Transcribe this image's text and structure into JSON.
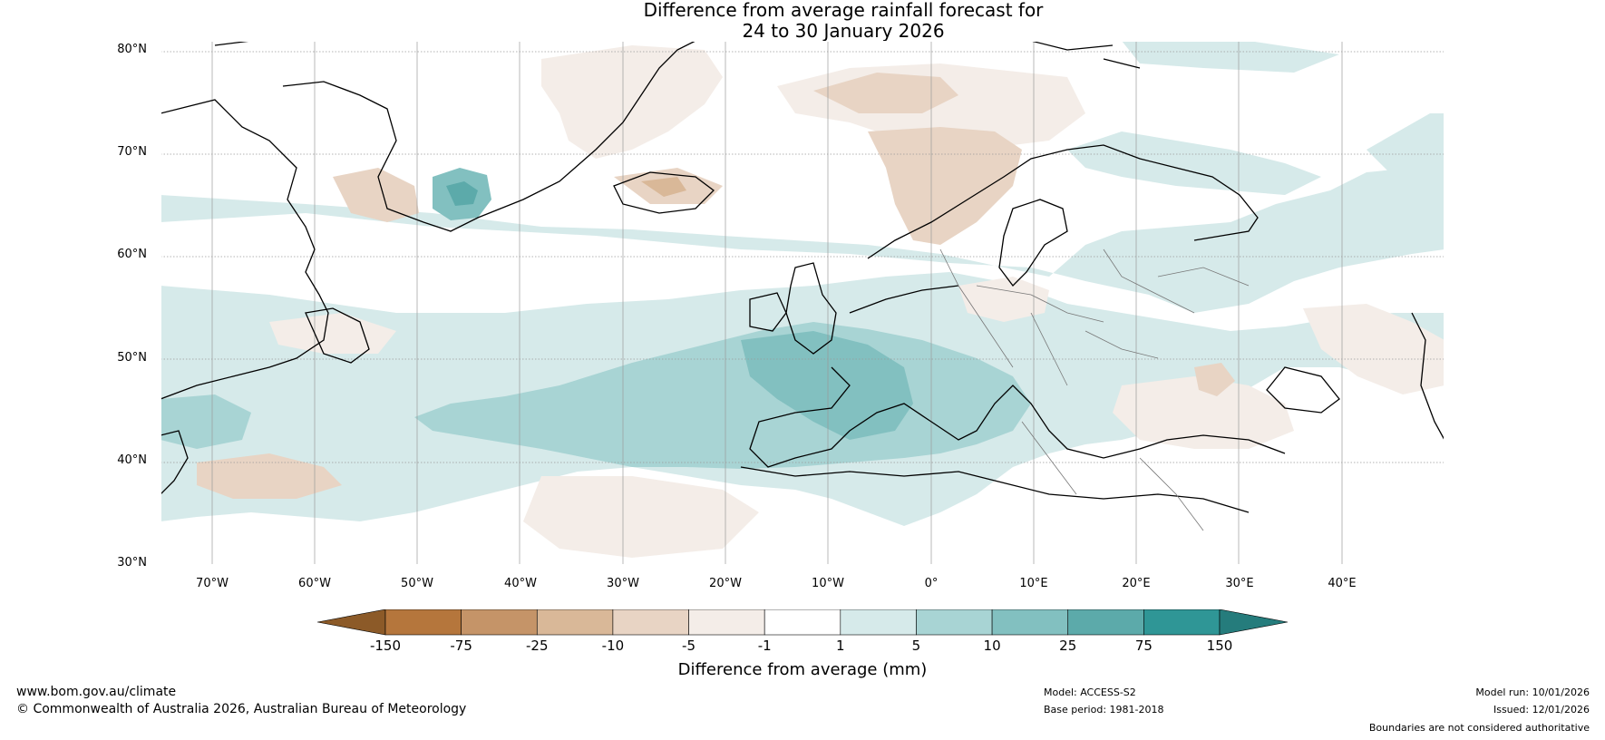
{
  "title": {
    "line1": "Difference from average rainfall forecast for",
    "line2": "24 to 30 January 2026"
  },
  "map": {
    "lat_labels": [
      "80°N",
      "70°N",
      "60°N",
      "50°N",
      "40°N",
      "30°N"
    ],
    "lon_labels": [
      "70°W",
      "60°W",
      "50°W",
      "40°W",
      "30°W",
      "20°W",
      "10°W",
      "0°",
      "10°E",
      "20°E",
      "30°E",
      "40°E"
    ],
    "extent": {
      "lon": [
        -75,
        50
      ],
      "lat": [
        30,
        81
      ]
    }
  },
  "colorbar": {
    "ticks": [
      "-150",
      "-75",
      "-25",
      "-10",
      "-5",
      "-1",
      "1",
      "5",
      "10",
      "25",
      "75",
      "150"
    ],
    "colors": [
      "#8c5a28",
      "#b5763c",
      "#c59468",
      "#d9b898",
      "#e8d4c4",
      "#f4ede8",
      "#ffffff",
      "#d6eaea",
      "#a8d4d4",
      "#82c0c0",
      "#5caaaa",
      "#2f9696",
      "#257c7c"
    ],
    "label": "Difference from average (mm)"
  },
  "footer": {
    "url": "www.bom.gov.au/climate",
    "copyright": "© Commonwealth of Australia 2026, Australian Bureau of Meteorology",
    "model": "Model: ACCESS-S2",
    "base_period": "Base period: 1981-2018",
    "model_run": "Model run: 10/01/2026",
    "issued": "Issued: 12/01/2026",
    "disclaimer": "Boundaries are not considered authoritative"
  }
}
